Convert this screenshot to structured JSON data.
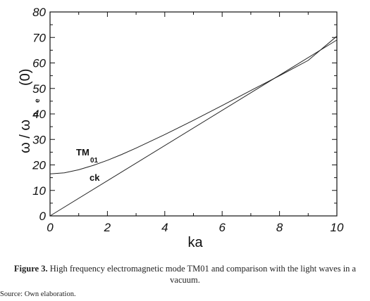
{
  "chart_data": {
    "type": "line",
    "xlabel": "ka",
    "ylabel_main": "ω / ω",
    "ylabel_sub": "p",
    "ylabel_subsub": "e",
    "ylabel_tail": "(0)",
    "xlim": [
      0,
      10
    ],
    "ylim": [
      0,
      80
    ],
    "x_ticks": [
      "0",
      "2",
      "4",
      "6",
      "8",
      "10"
    ],
    "y_ticks": [
      "0",
      "10",
      "20",
      "30",
      "40",
      "50",
      "60",
      "70",
      "80"
    ],
    "series": [
      {
        "name": "TM01",
        "x": [
          0,
          0.5,
          1,
          1.5,
          2,
          2.5,
          3,
          4,
          5,
          6,
          7,
          8,
          9,
          10
        ],
        "y": [
          16.5,
          16.9,
          18.1,
          19.8,
          21.8,
          24.1,
          26.6,
          31.9,
          37.5,
          43.3,
          49.2,
          55.0,
          61.0,
          70.5
        ]
      },
      {
        "name": "ck",
        "x": [
          0,
          10
        ],
        "y": [
          0,
          69
        ]
      }
    ],
    "annotations": {
      "tm_main": "TM",
      "tm_sub": "01",
      "ck": "ck"
    },
    "grid": false
  },
  "caption": {
    "label": "Figure 3.",
    "text": "High frequency electromagnetic mode TM01 and comparison with the light waves in a vacuum."
  },
  "source": "Source: Own elaboration."
}
